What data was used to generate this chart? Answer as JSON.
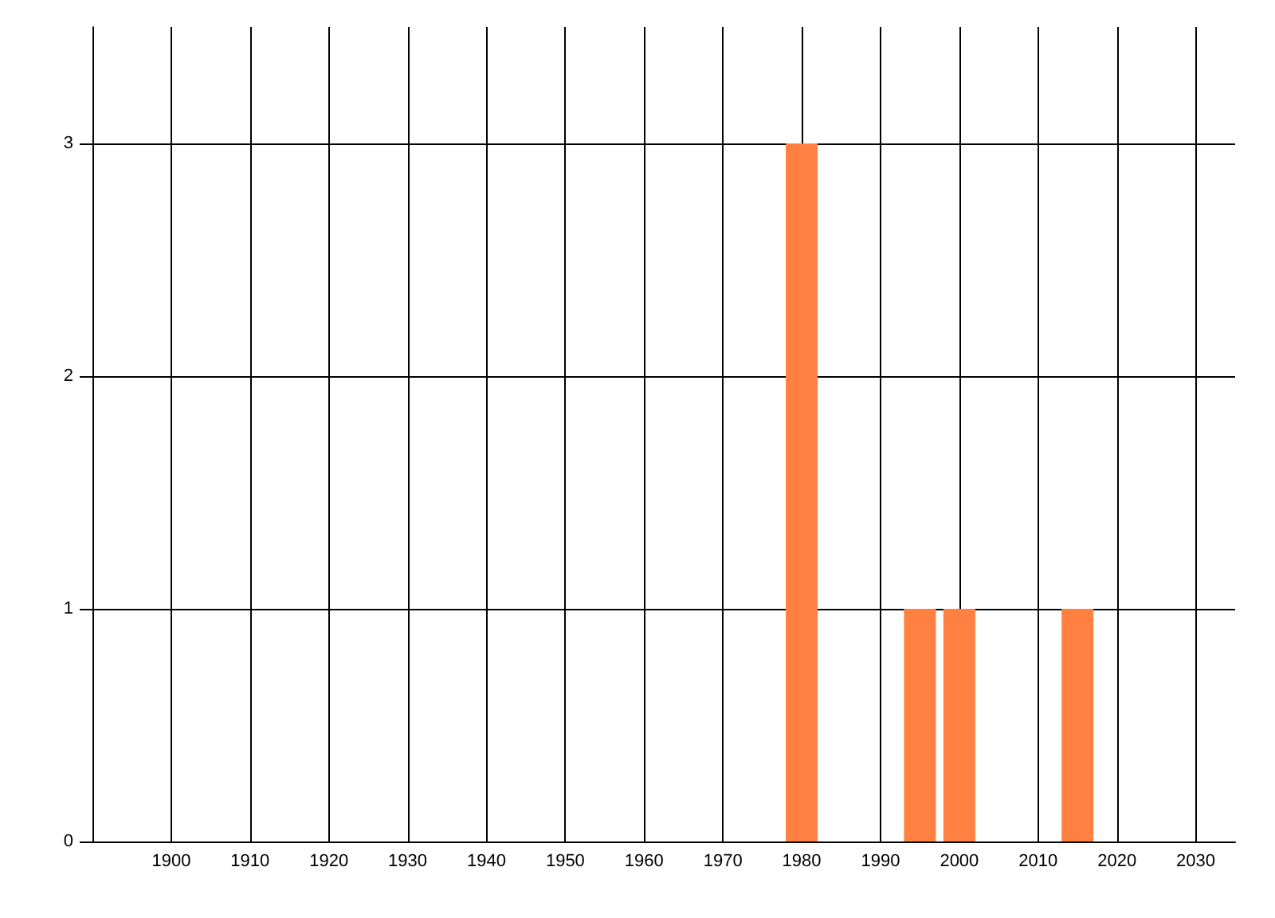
{
  "chart_data": {
    "type": "bar",
    "x": [
      1980,
      1995,
      2000,
      2015
    ],
    "values": [
      3,
      1,
      1,
      1
    ],
    "color": "#ff8040",
    "xlim": [
      1890,
      2035
    ],
    "xticks": [
      1900,
      1910,
      1920,
      1930,
      1940,
      1950,
      1960,
      1970,
      1980,
      1990,
      2000,
      2010,
      2020,
      2030
    ],
    "ylim": [
      0,
      3.5
    ],
    "yticks": [
      0,
      1,
      2,
      3
    ],
    "grid": true
  }
}
